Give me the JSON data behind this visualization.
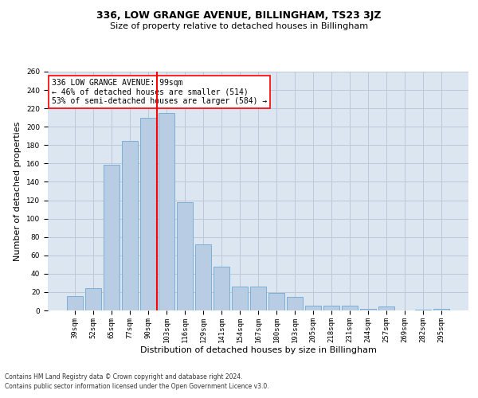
{
  "title": "336, LOW GRANGE AVENUE, BILLINGHAM, TS23 3JZ",
  "subtitle": "Size of property relative to detached houses in Billingham",
  "xlabel": "Distribution of detached houses by size in Billingham",
  "ylabel": "Number of detached properties",
  "categories": [
    "39sqm",
    "52sqm",
    "65sqm",
    "77sqm",
    "90sqm",
    "103sqm",
    "116sqm",
    "129sqm",
    "141sqm",
    "154sqm",
    "167sqm",
    "180sqm",
    "193sqm",
    "205sqm",
    "218sqm",
    "231sqm",
    "244sqm",
    "257sqm",
    "269sqm",
    "282sqm",
    "295sqm"
  ],
  "values": [
    16,
    24,
    159,
    185,
    210,
    215,
    118,
    72,
    48,
    26,
    26,
    19,
    15,
    5,
    5,
    5,
    2,
    4,
    0,
    1,
    2
  ],
  "bar_color": "#b8cce4",
  "bar_edge_color": "#7bafd4",
  "vline_x": 4.5,
  "vline_color": "red",
  "annotation_text": "336 LOW GRANGE AVENUE: 99sqm\n← 46% of detached houses are smaller (514)\n53% of semi-detached houses are larger (584) →",
  "annotation_box_color": "white",
  "annotation_box_edge": "red",
  "ylim": [
    0,
    260
  ],
  "yticks": [
    0,
    20,
    40,
    60,
    80,
    100,
    120,
    140,
    160,
    180,
    200,
    220,
    240,
    260
  ],
  "grid_color": "#c0c8d8",
  "background_color": "#dce6f0",
  "footer_line1": "Contains HM Land Registry data © Crown copyright and database right 2024.",
  "footer_line2": "Contains public sector information licensed under the Open Government Licence v3.0.",
  "title_fontsize": 9,
  "subtitle_fontsize": 8,
  "xlabel_fontsize": 8,
  "ylabel_fontsize": 8,
  "tick_fontsize": 6.5,
  "footer_fontsize": 5.5,
  "annotation_fontsize": 7
}
